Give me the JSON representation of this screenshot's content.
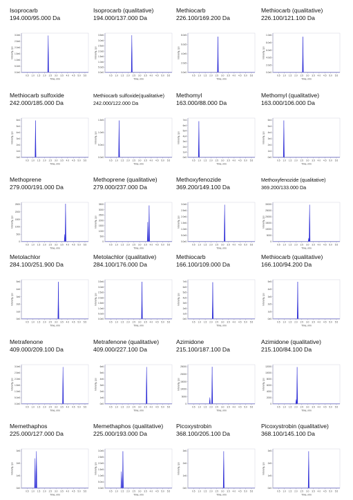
{
  "colors": {
    "peak": "#2b2bd6",
    "axis": "#8a8ab0",
    "baseline": "#6f6fd8"
  },
  "chart_data": [
    {
      "type": "line",
      "title": "Isoprocarb",
      "subtitle": "194.000/95.000 Da",
      "x_ticks": [
        "0.5",
        "1.0",
        "1.5",
        "2.0",
        "2.5",
        "3.0",
        "3.5",
        "4.0",
        "4.5",
        "5.0",
        "5.5"
      ],
      "y_ticks": [
        "0.0e0",
        "5.0e5",
        "1.0e6",
        "1.5e6",
        "2.0e6",
        "2.5e6",
        "3.0e6"
      ],
      "xlabel": "Time, min",
      "ylabel": "Intensity, cps",
      "xlim": [
        0.0,
        5.8
      ],
      "ylim": [
        0,
        3300000
      ],
      "peaks": [
        {
          "x": 2.32,
          "y": 3100000
        }
      ]
    },
    {
      "type": "line",
      "title": "Isoprocarb (qualitative)",
      "subtitle": "194.000/137.000 Da",
      "x_ticks": [
        "0.5",
        "1.0",
        "1.5",
        "2.0",
        "2.5",
        "3.0",
        "3.5",
        "4.0",
        "4.5",
        "5.0",
        "5.5"
      ],
      "y_ticks": [
        "0.0e0",
        "5.0e5",
        "1.0e6",
        "1.5e6",
        "2.0e6",
        "2.5e6",
        "3.0e6",
        "3.5e6"
      ],
      "xlabel": "Time, min",
      "ylabel": "Intensity, cps",
      "xlim": [
        0.0,
        5.8
      ],
      "ylim": [
        0,
        3800000
      ],
      "peaks": [
        {
          "x": 2.32,
          "y": 3600000
        }
      ]
    },
    {
      "type": "line",
      "title": "Methiocarb",
      "subtitle": "226.100/169.200 Da",
      "x_ticks": [
        "0.5",
        "1.0",
        "1.5",
        "2.0",
        "2.5",
        "3.0",
        "3.5",
        "4.0",
        "4.5",
        "5.0",
        "5.5"
      ],
      "y_ticks": [
        "0.0e0",
        "2.0e5",
        "4.0e5",
        "6.0e5",
        "8.0e5"
      ],
      "xlabel": "Time, min",
      "ylabel": "Intensity, cps",
      "xlim": [
        0.0,
        5.8
      ],
      "ylim": [
        0,
        900000
      ],
      "peaks": [
        {
          "x": 2.6,
          "y": 820000
        }
      ]
    },
    {
      "type": "line",
      "title": "Methiocarb (qualitative)",
      "subtitle": "226.100/121.100 Da",
      "x_ticks": [
        "0.5",
        "1.0",
        "1.5",
        "2.0",
        "2.5",
        "3.0",
        "3.5",
        "4.0",
        "4.5",
        "5.0",
        "5.5"
      ],
      "y_ticks": [
        "0.0e0",
        "2.0e5",
        "4.0e5",
        "6.0e5",
        "8.0e5",
        "1.0e6"
      ],
      "xlabel": "Time, min",
      "ylabel": "Intensity, cps",
      "xlim": [
        0.0,
        5.8
      ],
      "ylim": [
        0,
        1100000
      ],
      "peaks": [
        {
          "x": 2.6,
          "y": 1000000
        }
      ]
    },
    {
      "type": "line",
      "title": "Methiocarb sulfoxide",
      "subtitle": "242.000/185.000 Da",
      "x_ticks": [
        "0.5",
        "1.0",
        "1.5",
        "2.0",
        "2.5",
        "3.0",
        "3.5",
        "4.0",
        "4.5",
        "5.0",
        "5.5"
      ],
      "y_ticks": [
        "0e0",
        "1e4",
        "2e4",
        "3e4",
        "4e4",
        "5e4",
        "6e4"
      ],
      "xlabel": "Time, min",
      "ylabel": "Intensity, cps",
      "xlim": [
        0.0,
        5.8
      ],
      "ylim": [
        0,
        66000
      ],
      "peaks": [
        {
          "x": 1.22,
          "y": 62000
        }
      ]
    },
    {
      "type": "line",
      "title": "Methiocarb sulfoxide(qualitative)",
      "subtitle": "242.000/122.000 Da",
      "x_ticks": [
        "0.5",
        "1.0",
        "1.5",
        "2.0",
        "2.5",
        "3.0",
        "3.5",
        "4.0",
        "4.5",
        "5.0",
        "5.5"
      ],
      "y_ticks": [
        "0.0e0",
        "5.0e4",
        "1.0e5",
        "1.5e5"
      ],
      "xlabel": "Time, min",
      "ylabel": "Intensity, cps",
      "xlim": [
        0.0,
        5.8
      ],
      "ylim": [
        0,
        165000
      ],
      "peaks": [
        {
          "x": 1.22,
          "y": 155000
        }
      ]
    },
    {
      "type": "line",
      "title": "Methomyl",
      "subtitle": "163.000/88.000 Da",
      "x_ticks": [
        "0.5",
        "1.0",
        "1.5",
        "2.0",
        "2.5",
        "3.0",
        "3.5",
        "4.0",
        "4.5",
        "5.0",
        "5.5"
      ],
      "y_ticks": [
        "0e0",
        "1e4",
        "2e4",
        "3e4",
        "4e4",
        "5e4",
        "6e4",
        "7e4"
      ],
      "xlabel": "Time, min",
      "ylabel": "Intensity, cps",
      "xlim": [
        0.0,
        5.8
      ],
      "ylim": [
        0,
        76000
      ],
      "peaks": [
        {
          "x": 0.95,
          "y": 70000
        }
      ]
    },
    {
      "type": "line",
      "title": "Methomyl (qualitative)",
      "subtitle": "163.000/106.000 Da",
      "x_ticks": [
        "0.5",
        "1.0",
        "1.5",
        "2.0",
        "2.5",
        "3.0",
        "3.5",
        "4.0",
        "4.5",
        "5.0",
        "5.5"
      ],
      "y_ticks": [
        "0e0",
        "1e4",
        "2e4",
        "3e4",
        "4e4",
        "5e4",
        "6e4"
      ],
      "xlabel": "Time, min",
      "ylabel": "Intensity, cps",
      "xlim": [
        0.0,
        5.8
      ],
      "ylim": [
        0,
        66000
      ],
      "peaks": [
        {
          "x": 0.95,
          "y": 62000
        }
      ]
    },
    {
      "type": "line",
      "title": "Methoprene",
      "subtitle": "279.000/191.000 Da",
      "x_ticks": [
        "0.5",
        "1.0",
        "1.5",
        "2.0",
        "2.5",
        "3.0",
        "3.5",
        "4.0",
        "4.5",
        "5.0",
        "5.5"
      ],
      "y_ticks": [
        "0",
        "500",
        "1000",
        "1500",
        "2000",
        "2500"
      ],
      "xlabel": "Time, min",
      "ylabel": "Intensity, cps",
      "xlim": [
        0.0,
        5.8
      ],
      "ylim": [
        0,
        2700
      ],
      "peaks": [
        {
          "x": 3.82,
          "y": 2600
        },
        {
          "x": 3.75,
          "y": 500
        }
      ]
    },
    {
      "type": "line",
      "title": "Methoprene (qualitative)",
      "subtitle": "279.000/237.000 Da",
      "x_ticks": [
        "0.5",
        "1.0",
        "1.5",
        "2.0",
        "2.5",
        "3.0",
        "3.5",
        "4.0",
        "4.5",
        "5.0",
        "5.5"
      ],
      "y_ticks": [
        "0",
        "500",
        "1000",
        "1500",
        "2000",
        "2500",
        "3000",
        "3500"
      ],
      "xlabel": "Time, min",
      "ylabel": "Intensity, cps",
      "xlim": [
        0.0,
        5.8
      ],
      "ylim": [
        0,
        3800
      ],
      "peaks": [
        {
          "x": 3.82,
          "y": 3500
        },
        {
          "x": 3.7,
          "y": 1900
        }
      ]
    },
    {
      "type": "line",
      "title": "Methoxyfenozide",
      "subtitle": "369.200/149.100 Da",
      "x_ticks": [
        "0.5",
        "1.0",
        "1.5",
        "2.0",
        "2.5",
        "3.0",
        "3.5",
        "4.0",
        "4.5",
        "5.0",
        "5.5"
      ],
      "y_ticks": [
        "0.0e0",
        "5.0e5",
        "1.0e6",
        "1.5e6",
        "2.0e6",
        "2.5e6",
        "3.0e6"
      ],
      "xlabel": "Time, min",
      "ylabel": "Intensity, cps",
      "xlim": [
        0.0,
        5.8
      ],
      "ylim": [
        0,
        3300000
      ],
      "peaks": [
        {
          "x": 3.18,
          "y": 3100000
        }
      ]
    },
    {
      "type": "line",
      "title": "Methoxyfenozide (qualitative)",
      "subtitle": "369.200/133.000 Da",
      "x_ticks": [
        "0.5",
        "1.0",
        "1.5",
        "2.0",
        "2.5",
        "3.0",
        "3.5",
        "4.0",
        "4.5",
        "5.0",
        "5.5"
      ],
      "y_ticks": [
        "0",
        "5000",
        "10000",
        "15000",
        "20000",
        "25000",
        "30000"
      ],
      "xlabel": "Time, min",
      "ylabel": "Intensity, cps",
      "xlim": [
        0.0,
        5.8
      ],
      "ylim": [
        0,
        33000
      ],
      "peaks": [
        {
          "x": 3.18,
          "y": 31000
        },
        {
          "x": 3.1,
          "y": 3000
        }
      ]
    },
    {
      "type": "line",
      "title": "Metolachlor",
      "subtitle": "284.100/251.900 Da",
      "x_ticks": [
        "0.5",
        "1.0",
        "1.5",
        "2.0",
        "2.5",
        "3.0",
        "3.5",
        "4.0",
        "4.5",
        "5.0",
        "5.5"
      ],
      "y_ticks": [
        "0e0",
        "1e6",
        "2e6",
        "3e6",
        "4e6",
        "5e6"
      ],
      "xlabel": "Time, min",
      "ylabel": "Intensity, cps",
      "xlim": [
        0.0,
        5.8
      ],
      "ylim": [
        0,
        5500000
      ],
      "peaks": [
        {
          "x": 3.2,
          "y": 5200000
        }
      ]
    },
    {
      "type": "line",
      "title": "Metolachlor (qualitative)",
      "subtitle": "284.100/176.000 Da",
      "x_ticks": [
        "0.5",
        "1.0",
        "1.5",
        "2.0",
        "2.5",
        "3.0",
        "3.5",
        "4.0",
        "4.5",
        "5.0",
        "5.5"
      ],
      "y_ticks": [
        "0.0e0",
        "5.0e5",
        "1.0e6",
        "1.5e6",
        "2.0e6",
        "2.5e6",
        "3.0e6",
        "3.5e6"
      ],
      "xlabel": "Time, min",
      "ylabel": "Intensity, cps",
      "xlim": [
        0.0,
        5.8
      ],
      "ylim": [
        0,
        3800000
      ],
      "peaks": [
        {
          "x": 3.2,
          "y": 3600000
        }
      ]
    },
    {
      "type": "line",
      "title": "Methiocarb",
      "subtitle": "166.100/109.000 Da",
      "x_ticks": [
        "0.5",
        "1.0",
        "1.5",
        "2.0",
        "2.5",
        "3.0",
        "3.5",
        "4.0",
        "4.5",
        "5.0",
        "5.5"
      ],
      "y_ticks": [
        "0e0",
        "1e5",
        "2e5",
        "3e5",
        "4e5",
        "5e5",
        "6e5",
        "7e5"
      ],
      "xlabel": "Time, min",
      "ylabel": "Intensity, cps",
      "xlim": [
        0.0,
        5.8
      ],
      "ylim": [
        0,
        770000
      ],
      "peaks": [
        {
          "x": 2.15,
          "y": 720000
        }
      ]
    },
    {
      "type": "line",
      "title": "Methiocarb (qualitative)",
      "subtitle": "166.100/94.200 Da",
      "x_ticks": [
        "0.5",
        "1.0",
        "1.5",
        "2.0",
        "2.5",
        "3.0",
        "3.5",
        "4.0",
        "4.5",
        "5.0",
        "5.5"
      ],
      "y_ticks": [
        "0e0",
        "1e5",
        "2e5",
        "3e5",
        "4e5",
        "5e5"
      ],
      "xlabel": "Time, min",
      "ylabel": "Intensity, cps",
      "xlim": [
        0.0,
        5.8
      ],
      "ylim": [
        0,
        560000
      ],
      "peaks": [
        {
          "x": 2.15,
          "y": 530000
        }
      ]
    },
    {
      "type": "line",
      "title": "Metrafenone",
      "subtitle": "409.000/209.100 Da",
      "x_ticks": [
        "0.5",
        "1.0",
        "1.5",
        "2.0",
        "2.5",
        "3.0",
        "3.5",
        "4.0",
        "4.5",
        "5.0",
        "5.5"
      ],
      "y_ticks": [
        "0.0e0",
        "5.0e5",
        "1.0e6",
        "1.5e6",
        "2.0e6",
        "2.5e6",
        "3.0e6"
      ],
      "xlabel": "Time, min",
      "ylabel": "Intensity, cps",
      "xlim": [
        0.0,
        5.8
      ],
      "ylim": [
        0,
        3300000
      ],
      "peaks": [
        {
          "x": 3.6,
          "y": 3100000
        }
      ]
    },
    {
      "type": "line",
      "title": "Metrafenone (qualitative)",
      "subtitle": "409.000/227.100 Da",
      "x_ticks": [
        "0.5",
        "1.0",
        "1.5",
        "2.0",
        "2.5",
        "3.0",
        "3.5",
        "4.0",
        "4.5",
        "5.0",
        "5.5"
      ],
      "y_ticks": [
        "0e0",
        "1e6",
        "2e6",
        "3e6",
        "4e6",
        "5e6",
        "6e6"
      ],
      "xlabel": "Time, min",
      "ylabel": "Intensity, cps",
      "xlim": [
        0.0,
        5.8
      ],
      "ylim": [
        0,
        6600000
      ],
      "peaks": [
        {
          "x": 3.6,
          "y": 6200000
        }
      ]
    },
    {
      "type": "line",
      "title": "Azimidone",
      "subtitle": "215.100/187.100 Da",
      "x_ticks": [
        "0.5",
        "1.0",
        "1.5",
        "2.0",
        "2.5",
        "3.0",
        "3.5",
        "4.0",
        "4.5",
        "5.0",
        "5.5"
      ],
      "y_ticks": [
        "0",
        "5000",
        "10000",
        "15000",
        "20000",
        "25000"
      ],
      "xlabel": "Time, min",
      "ylabel": "Intensity, cps",
      "xlim": [
        0.0,
        5.8
      ],
      "ylim": [
        0,
        27000
      ],
      "peaks": [
        {
          "x": 2.1,
          "y": 25500
        },
        {
          "x": 1.9,
          "y": 4500
        }
      ]
    },
    {
      "type": "line",
      "title": "Azimidone (qualitative)",
      "subtitle": "215.100/84.100 Da",
      "x_ticks": [
        "0.5",
        "1.0",
        "1.5",
        "2.0",
        "2.5",
        "3.0",
        "3.5",
        "4.0",
        "4.5",
        "5.0",
        "5.5"
      ],
      "y_ticks": [
        "0",
        "2000",
        "4000",
        "6000",
        "8000",
        "10000",
        "12000"
      ],
      "xlabel": "Time, min",
      "ylabel": "Intensity, cps",
      "xlim": [
        0.0,
        5.8
      ],
      "ylim": [
        0,
        13000
      ],
      "peaks": [
        {
          "x": 2.1,
          "y": 12200
        },
        {
          "x": 2.02,
          "y": 1500
        }
      ]
    },
    {
      "type": "line",
      "title": "Memethaphos",
      "subtitle": "225.000/127.000 Da",
      "x_ticks": [
        "0.5",
        "1.0",
        "1.5",
        "2.0",
        "2.5",
        "3.0",
        "3.5",
        "4.0",
        "4.5",
        "5.0",
        "5.5"
      ],
      "y_ticks": [
        "0e0",
        "1e5",
        "2e5",
        "3e5"
      ],
      "xlabel": "Time, min",
      "ylabel": "Intensity, cps",
      "xlim": [
        0.0,
        5.8
      ],
      "ylim": [
        0,
        330000
      ],
      "peaks": [
        {
          "x": 1.3,
          "y": 310000
        },
        {
          "x": 1.18,
          "y": 250000
        }
      ]
    },
    {
      "type": "line",
      "title": "Memethaphos (qualitative)",
      "subtitle": "225.000/193.000 Da",
      "x_ticks": [
        "0.5",
        "1.0",
        "1.5",
        "2.0",
        "2.5",
        "3.0",
        "3.5",
        "4.0",
        "4.5",
        "5.0",
        "5.5"
      ],
      "y_ticks": [
        "0.0e0",
        "5.0e4",
        "1.0e5",
        "1.5e5",
        "2.0e5",
        "2.5e5",
        "3.0e5"
      ],
      "xlabel": "Time, min",
      "ylabel": "Intensity, cps",
      "xlim": [
        0.0,
        5.8
      ],
      "ylim": [
        0,
        330000
      ],
      "peaks": [
        {
          "x": 1.55,
          "y": 310000
        },
        {
          "x": 1.42,
          "y": 140000
        }
      ]
    },
    {
      "type": "line",
      "title": "Picoxystrobin",
      "subtitle": "368.100/205.100 Da",
      "x_ticks": [
        "0.5",
        "1.0",
        "1.5",
        "2.0",
        "2.5",
        "3.0",
        "3.5",
        "4.0",
        "4.5",
        "5.0",
        "5.5"
      ],
      "y_ticks": [
        "0e0",
        "1e6",
        "2e6",
        "3e6"
      ],
      "xlabel": "Time, min",
      "ylabel": "Intensity, cps",
      "xlim": [
        0.0,
        5.8
      ],
      "ylim": [
        0,
        3300000
      ],
      "peaks": [
        {
          "x": 3.1,
          "y": 3100000
        }
      ]
    },
    {
      "type": "line",
      "title": "Picoxystrobin (qualitative)",
      "subtitle": "368.100/145.100 Da",
      "x_ticks": [
        "0.5",
        "1.0",
        "1.5",
        "2.0",
        "2.5",
        "3.0",
        "3.5",
        "4.0",
        "4.5",
        "5.0",
        "5.5"
      ],
      "y_ticks": [
        "0e0",
        "1e5",
        "2e5",
        "3e5"
      ],
      "xlabel": "Time, min",
      "ylabel": "Intensity, cps",
      "xlim": [
        0.0,
        5.8
      ],
      "ylim": [
        0,
        330000
      ],
      "peaks": [
        {
          "x": 3.1,
          "y": 310000
        }
      ]
    }
  ]
}
